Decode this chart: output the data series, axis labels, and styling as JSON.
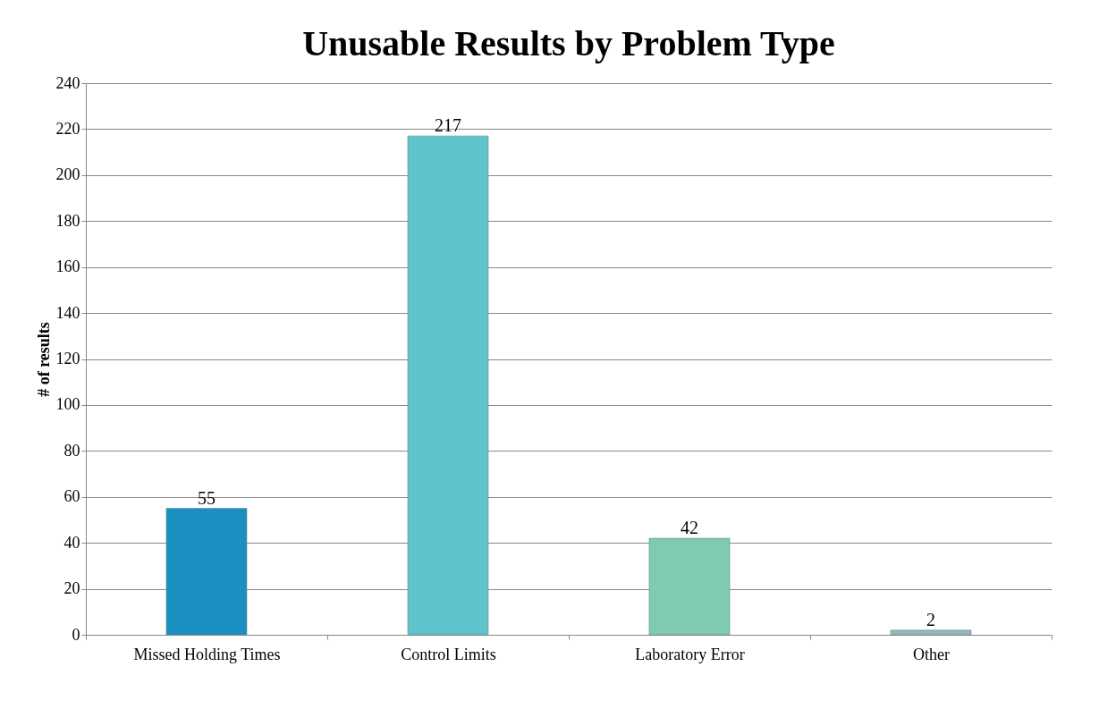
{
  "chart_data": {
    "type": "bar",
    "title": "Unusable Results by Problem Type",
    "ylabel": "# of results",
    "categories": [
      "Missed Holding Times",
      "Control Limits",
      "Laboratory Error",
      "Other"
    ],
    "values": [
      55,
      217,
      42,
      2
    ],
    "colors": [
      "#1b8fc0",
      "#5fc3cb",
      "#7ecbb0",
      "#98b8b8"
    ],
    "ylim": [
      0,
      240
    ],
    "yticks": [
      0,
      20,
      40,
      60,
      80,
      100,
      120,
      140,
      160,
      180,
      200,
      220,
      240
    ],
    "grid": "y",
    "data_labels": true
  }
}
